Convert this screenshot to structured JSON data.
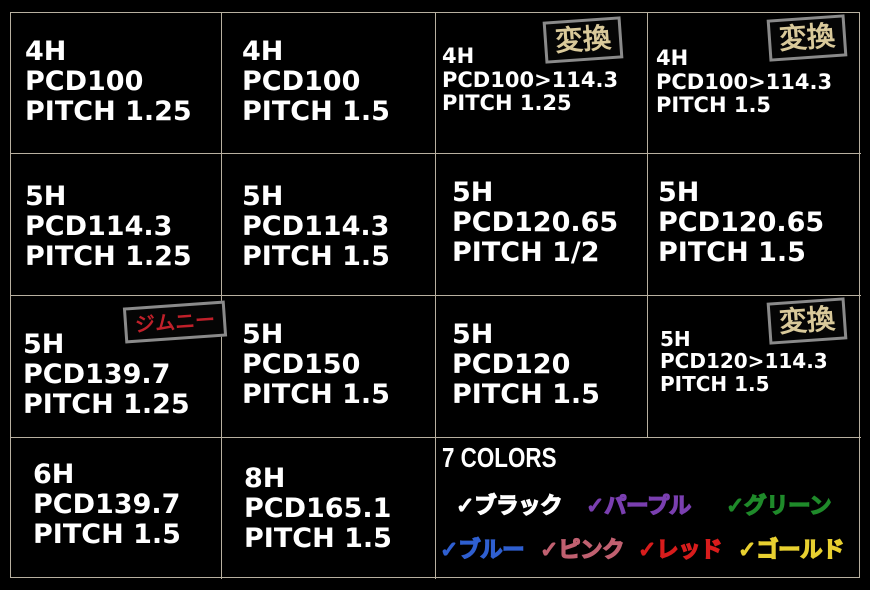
{
  "cells": [
    {
      "lines": [
        "4H",
        "PCD100",
        "PITCH 1.25"
      ]
    },
    {
      "lines": [
        "4H",
        "PCD100",
        "PITCH 1.5"
      ]
    },
    {
      "lines": [
        "4H",
        "PCD100>114.3",
        "PITCH 1.25"
      ],
      "badge": "変換"
    },
    {
      "lines": [
        "4H",
        "PCD100>114.3",
        "PITCH 1.5"
      ],
      "badge": "変換"
    },
    {
      "lines": [
        "5H",
        "PCD114.3",
        "PITCH 1.25"
      ]
    },
    {
      "lines": [
        "5H",
        "PCD114.3",
        "PITCH 1.5"
      ]
    },
    {
      "lines": [
        "5H",
        "PCD120.65",
        "PITCH 1/2"
      ]
    },
    {
      "lines": [
        "5H",
        "PCD120.65",
        "PITCH 1.5"
      ]
    },
    {
      "lines": [
        "5H",
        "PCD139.7",
        "PITCH 1.25"
      ],
      "badge": "ジムニー"
    },
    {
      "lines": [
        "5H",
        "PCD150",
        "PITCH 1.5"
      ]
    },
    {
      "lines": [
        "5H",
        "PCD120",
        "PITCH 1.5"
      ]
    },
    {
      "lines": [
        "5H",
        "PCD120>114.3",
        "PITCH 1.5"
      ],
      "badge": "変換"
    },
    {
      "lines": [
        "6H",
        "PCD139.7",
        "PITCH 1.5"
      ]
    },
    {
      "lines": [
        "8H",
        "PCD165.1",
        "PITCH 1.5"
      ]
    }
  ],
  "badge_colors": {
    "convert": "#d9c99a",
    "jimny": "#c0202a"
  },
  "colors_section": {
    "title": "7 COLORS",
    "items": [
      {
        "label": "✓ブラック",
        "color": "#ffffff"
      },
      {
        "label": "✓パープル",
        "color": "#7a3fb0"
      },
      {
        "label": "✓グリーン",
        "color": "#1f8a2a"
      },
      {
        "label": "✓ブルー",
        "color": "#2f5fd0"
      },
      {
        "label": "✓ピンク",
        "color": "#c06070"
      },
      {
        "label": "✓レッド",
        "color": "#d81c1c"
      },
      {
        "label": "✓ゴールド",
        "color": "#e8d030"
      }
    ]
  }
}
